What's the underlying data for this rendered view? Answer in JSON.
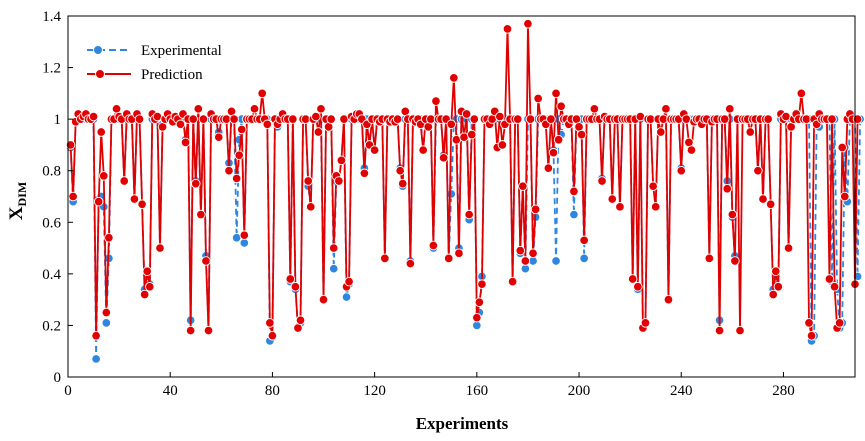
{
  "chart_data": {
    "type": "line",
    "title": "",
    "xlabel": "Experiments",
    "ylabel_main": "X",
    "ylabel_sub": "DIM",
    "xlim": [
      0,
      308
    ],
    "ylim": [
      0,
      1.4
    ],
    "xticks": [
      0,
      40,
      80,
      120,
      160,
      200,
      240,
      280
    ],
    "yticks": [
      0,
      0.2,
      0.4,
      0.6,
      0.8,
      1,
      1.2,
      1.4
    ],
    "xtick_labels": [
      "0",
      "40",
      "80",
      "120",
      "160",
      "200",
      "240",
      "280"
    ],
    "ytick_labels": [
      "0",
      "0.2",
      "0.4",
      "0.6",
      "0.8",
      "1",
      "1.2",
      "1.4"
    ],
    "legend_position": "top-left",
    "series": [
      {
        "name": "Experimental",
        "color": "#2e86de",
        "style": "dashed",
        "values": [
          0.89,
          0.68,
          0.99,
          1.0,
          1.0,
          1.0,
          1.0,
          1.0,
          1.0,
          1.0,
          0.07,
          0.69,
          0.7,
          0.66,
          0.21,
          0.46,
          1.0,
          1.0,
          1.0,
          1.0,
          1.0,
          0.76,
          1.0,
          1.0,
          1.0,
          0.69,
          1.0,
          1.0,
          0.67,
          0.34,
          0.38,
          0.36,
          1.0,
          1.0,
          1.0,
          0.5,
          0.98,
          1.0,
          1.0,
          1.0,
          1.0,
          1.0,
          1.0,
          1.0,
          1.0,
          0.92,
          1.0,
          0.22,
          1.0,
          0.76,
          1.0,
          0.63,
          1.0,
          0.47,
          0.18,
          1.0,
          1.0,
          1.0,
          0.95,
          1.0,
          1.0,
          1.0,
          0.83,
          1.0,
          1.0,
          0.54,
          0.92,
          1.0,
          0.52,
          1.0,
          1.0,
          1.0,
          1.0,
          1.0,
          1.0,
          1.0,
          1.0,
          1.0,
          0.14,
          0.16,
          1.0,
          0.97,
          1.0,
          1.0,
          1.0,
          1.0,
          0.37,
          1.0,
          0.34,
          0.19,
          0.21,
          1.0,
          1.0,
          0.74,
          0.66,
          1.0,
          1.0,
          1.0,
          1.0,
          0.3,
          1.0,
          1.0,
          1.0,
          0.42,
          0.76,
          0.76,
          0.84,
          1.0,
          0.31,
          0.36,
          1.0,
          1.0,
          1.0,
          1.0,
          1.0,
          0.81,
          1.0,
          0.9,
          1.0,
          0.88,
          1.0,
          1.0,
          1.0,
          0.46,
          1.0,
          1.0,
          1.0,
          1.0,
          1.0,
          0.81,
          0.74,
          1.0,
          1.0,
          0.45,
          1.0,
          1.0,
          1.0,
          1.0,
          0.88,
          1.0,
          1.0,
          1.0,
          0.5,
          1.0,
          1.0,
          1.0,
          0.86,
          1.0,
          0.46,
          0.71,
          1.0,
          1.0,
          0.5,
          1.0,
          1.0,
          1.0,
          0.61,
          1.0,
          1.0,
          0.2,
          0.25,
          0.39,
          1.0,
          1.0,
          1.0,
          1.0,
          1.0,
          1.0,
          1.0,
          1.0,
          1.0,
          1.0,
          1.0,
          0.37,
          1.0,
          1.0,
          0.48,
          0.74,
          0.42,
          1.0,
          1.0,
          0.45,
          0.62,
          1.0,
          1.0,
          1.0,
          1.0,
          1.0,
          1.0,
          0.88,
          0.45,
          1.0,
          0.94,
          1.0,
          1.0,
          1.0,
          1.0,
          0.63,
          1.0,
          1.0,
          1.0,
          0.46,
          1.0,
          1.0,
          1.0,
          1.0,
          1.0,
          1.0,
          0.77,
          1.0,
          1.0,
          1.0,
          0.69,
          1.0,
          1.0,
          0.66,
          1.0,
          1.0,
          1.0,
          1.0,
          0.38,
          1.0,
          0.34,
          1.0,
          0.19,
          0.21,
          1.0,
          1.0,
          0.74,
          0.66,
          1.0,
          1.0,
          1.0,
          1.0,
          0.3,
          1.0,
          1.0,
          1.0,
          1.0,
          0.81,
          1.0,
          1.0,
          1.0,
          1.0,
          1.0,
          1.0,
          1.0,
          1.0,
          1.0,
          1.0,
          0.46,
          1.0,
          1.0,
          1.0,
          0.22,
          1.0,
          1.0,
          0.76,
          1.0,
          0.62,
          0.47,
          1.0,
          1.0,
          1.0,
          1.0,
          1.0,
          1.0,
          1.0,
          1.0,
          0.8,
          1.0,
          0.69,
          1.0,
          1.0,
          0.67,
          0.34,
          0.39,
          0.35,
          1.0,
          1.0,
          1.0,
          0.5,
          1.0,
          1.0,
          1.0,
          1.0,
          1.0,
          1.0,
          1.0,
          1.0,
          0.14,
          0.16,
          1.0,
          0.97,
          1.0,
          1.0,
          1.0,
          1.0,
          0.37,
          1.0,
          0.34,
          0.19,
          0.21,
          0.89,
          0.68,
          1.0,
          1.0,
          1.0,
          0.39,
          1.0
        ]
      },
      {
        "name": "Prediction",
        "color": "#e00000",
        "style": "solid",
        "values": [
          0.9,
          0.7,
          0.99,
          1.02,
          1.0,
          1.01,
          1.02,
          1.0,
          1.0,
          1.01,
          0.16,
          0.68,
          0.95,
          0.78,
          0.25,
          0.54,
          1.0,
          1.0,
          1.04,
          1.01,
          1.0,
          0.76,
          1.02,
          1.0,
          1.0,
          0.69,
          1.02,
          1.0,
          0.67,
          0.32,
          0.41,
          0.35,
          1.02,
          1.0,
          1.01,
          0.5,
          0.97,
          1.0,
          1.02,
          1.0,
          0.99,
          1.01,
          1.0,
          0.98,
          1.02,
          0.91,
          1.0,
          0.18,
          1.0,
          0.75,
          1.04,
          0.63,
          1.0,
          0.45,
          0.18,
          1.02,
          1.0,
          1.0,
          0.93,
          1.0,
          1.0,
          1.0,
          0.8,
          1.03,
          1.0,
          0.77,
          0.86,
          0.96,
          0.55,
          1.0,
          1.0,
          1.0,
          1.04,
          1.0,
          1.0,
          1.1,
          1.0,
          0.98,
          0.21,
          0.16,
          1.0,
          0.98,
          1.0,
          1.02,
          1.0,
          1.0,
          0.38,
          1.0,
          0.35,
          0.19,
          0.22,
          1.0,
          1.0,
          0.76,
          0.66,
          1.0,
          1.01,
          0.95,
          1.04,
          0.3,
          1.0,
          0.97,
          1.0,
          0.5,
          0.78,
          0.76,
          0.84,
          1.0,
          0.35,
          0.37,
          1.01,
          1.0,
          1.02,
          1.02,
          1.0,
          0.79,
          0.98,
          0.9,
          1.0,
          0.88,
          1.0,
          0.99,
          1.0,
          0.46,
          1.0,
          0.99,
          1.0,
          0.99,
          1.0,
          0.8,
          0.75,
          1.03,
          1.0,
          0.44,
          1.0,
          0.99,
          1.0,
          0.98,
          0.88,
          1.0,
          0.97,
          1.0,
          0.51,
          1.07,
          1.0,
          1.0,
          0.85,
          1.0,
          0.46,
          0.98,
          1.16,
          0.92,
          0.48,
          1.03,
          0.93,
          1.02,
          0.63,
          0.94,
          1.0,
          0.23,
          0.29,
          0.36,
          1.0,
          1.0,
          0.98,
          1.0,
          1.03,
          0.89,
          1.01,
          0.9,
          0.98,
          1.35,
          1.0,
          0.37,
          1.0,
          1.0,
          0.49,
          0.74,
          0.45,
          1.37,
          1.0,
          0.48,
          0.65,
          1.08,
          1.0,
          1.0,
          0.98,
          0.81,
          1.0,
          0.87,
          1.1,
          0.92,
          1.05,
          1.0,
          1.0,
          0.98,
          1.0,
          0.72,
          1.0,
          0.97,
          0.94,
          0.53,
          1.0,
          1.0,
          1.0,
          1.04,
          1.0,
          1.0,
          0.76,
          1.01,
          1.0,
          1.0,
          0.69,
          1.0,
          1.0,
          0.66,
          1.0,
          1.0,
          1.0,
          1.0,
          0.38,
          1.0,
          0.35,
          1.01,
          0.19,
          0.21,
          1.0,
          1.0,
          0.74,
          0.66,
          1.0,
          0.95,
          1.0,
          1.04,
          0.3,
          1.0,
          1.0,
          1.0,
          1.0,
          0.8,
          1.02,
          1.0,
          0.91,
          0.88,
          0.99,
          1.0,
          1.0,
          0.98,
          1.0,
          1.0,
          0.46,
          0.99,
          1.0,
          1.0,
          0.18,
          1.0,
          1.0,
          0.73,
          1.04,
          0.63,
          0.45,
          1.0,
          0.18,
          1.0,
          1.0,
          1.0,
          0.95,
          1.0,
          1.0,
          0.8,
          1.0,
          0.69,
          1.0,
          1.0,
          0.67,
          0.32,
          0.41,
          0.35,
          1.02,
          1.0,
          1.01,
          0.5,
          0.97,
          1.0,
          1.02,
          1.0,
          1.1,
          1.0,
          1.0,
          0.21,
          0.16,
          1.0,
          0.98,
          1.02,
          1.0,
          1.0,
          1.0,
          0.38,
          1.0,
          0.35,
          0.19,
          0.21,
          0.89,
          0.7,
          1.0,
          1.02,
          1.0,
          0.36,
          1.0
        ]
      }
    ]
  }
}
